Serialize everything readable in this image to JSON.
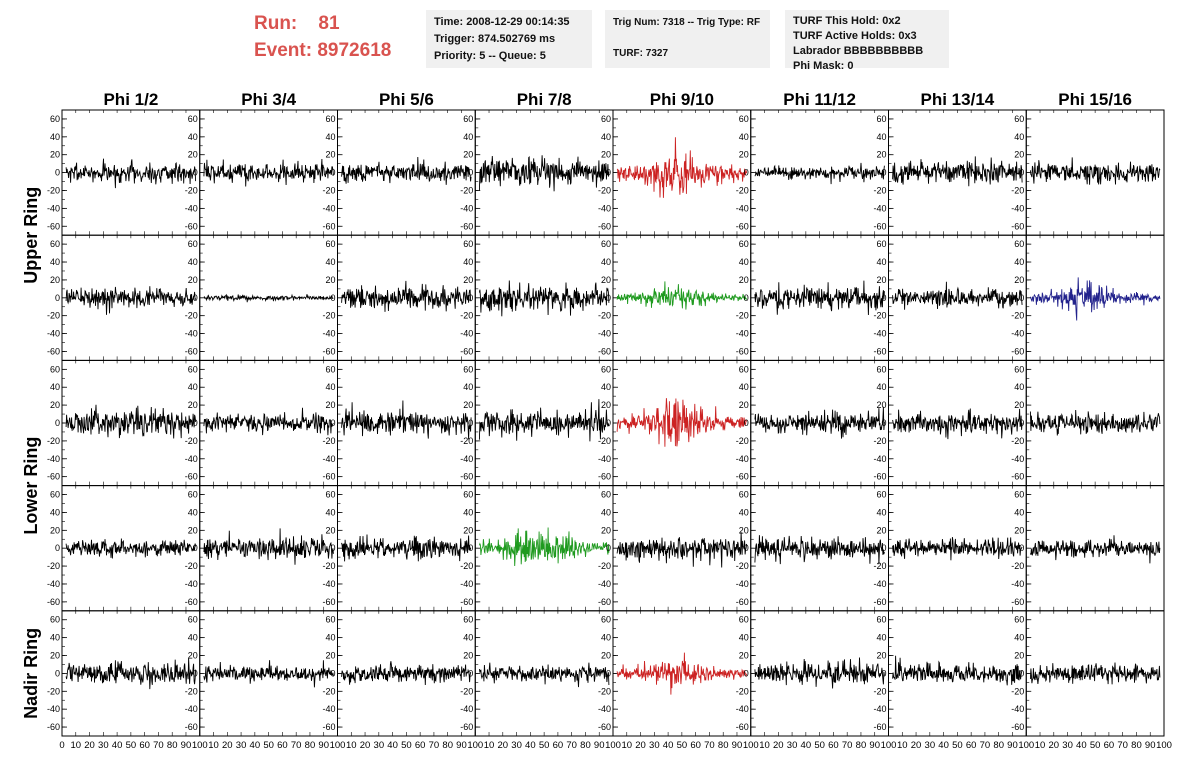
{
  "header": {
    "run_label": "Run:",
    "run_value": "81",
    "event_label": "Event:",
    "event_value": "8972618"
  },
  "info_boxes": {
    "time": "Time: 2008-12-29 00:14:35",
    "trigger": "Trigger: 874.502769 ms",
    "priority": "Priority: 5 -- Queue: 5",
    "trig": "Trig Num: 7318 -- Trig Type: RF",
    "turf": "TURF: 7327",
    "turf_this_hold": "TURF This Hold: 0x2",
    "turf_active_holds": "TURF Active Holds: 0x3",
    "labrador": "Labrador BBBBBBBBBB",
    "phi_mask": "Phi Mask: 0"
  },
  "chart_data": {
    "type": "line",
    "columns": [
      "Phi 1/2",
      "Phi 3/4",
      "Phi 5/6",
      "Phi 7/8",
      "Phi 9/10",
      "Phi 11/12",
      "Phi 13/14",
      "Phi 15/16"
    ],
    "row_labels": [
      {
        "text": "Upper Ring",
        "panel_rows": [
          0,
          1
        ]
      },
      {
        "text": "Lower Ring",
        "panel_rows": [
          2,
          3
        ]
      },
      {
        "text": "Nadir Ring",
        "panel_rows": [
          4,
          4
        ]
      }
    ],
    "xlim": [
      0,
      100
    ],
    "ylim": [
      -70,
      70
    ],
    "y_ticks": [
      -60,
      -40,
      -20,
      0,
      20,
      40,
      60
    ],
    "x_tick_labels": [
      "0",
      "10",
      "20",
      "30",
      "40",
      "50",
      "60",
      "70",
      "80",
      "90",
      "100"
    ],
    "colors": {
      "default": "#000000",
      "red": "#cc2222",
      "green": "#1f9a1f",
      "blue": "#22228c"
    },
    "panels": [
      {
        "row": 0,
        "col": 0,
        "color": "default",
        "amplitude": 13
      },
      {
        "row": 0,
        "col": 1,
        "color": "default",
        "amplitude": 12
      },
      {
        "row": 0,
        "col": 2,
        "color": "default",
        "amplitude": 12
      },
      {
        "row": 0,
        "col": 3,
        "color": "default",
        "amplitude": 17
      },
      {
        "row": 0,
        "col": 4,
        "color": "red",
        "amplitude": 25
      },
      {
        "row": 0,
        "col": 5,
        "color": "default",
        "amplitude": 8
      },
      {
        "row": 0,
        "col": 6,
        "color": "default",
        "amplitude": 14
      },
      {
        "row": 0,
        "col": 7,
        "color": "default",
        "amplitude": 13
      },
      {
        "row": 1,
        "col": 0,
        "color": "default",
        "amplitude": 12
      },
      {
        "row": 1,
        "col": 1,
        "color": "default",
        "amplitude": 3
      },
      {
        "row": 1,
        "col": 2,
        "color": "default",
        "amplitude": 15
      },
      {
        "row": 1,
        "col": 3,
        "color": "default",
        "amplitude": 16
      },
      {
        "row": 1,
        "col": 4,
        "color": "green",
        "amplitude": 13
      },
      {
        "row": 1,
        "col": 5,
        "color": "default",
        "amplitude": 14
      },
      {
        "row": 1,
        "col": 6,
        "color": "default",
        "amplitude": 12
      },
      {
        "row": 1,
        "col": 7,
        "color": "blue",
        "amplitude": 15
      },
      {
        "row": 2,
        "col": 0,
        "color": "default",
        "amplitude": 16
      },
      {
        "row": 2,
        "col": 1,
        "color": "default",
        "amplitude": 11
      },
      {
        "row": 2,
        "col": 2,
        "color": "default",
        "amplitude": 15
      },
      {
        "row": 2,
        "col": 3,
        "color": "default",
        "amplitude": 16
      },
      {
        "row": 2,
        "col": 4,
        "color": "red",
        "amplitude": 22
      },
      {
        "row": 2,
        "col": 5,
        "color": "default",
        "amplitude": 13
      },
      {
        "row": 2,
        "col": 6,
        "color": "default",
        "amplitude": 13
      },
      {
        "row": 2,
        "col": 7,
        "color": "default",
        "amplitude": 13
      },
      {
        "row": 3,
        "col": 0,
        "color": "default",
        "amplitude": 10
      },
      {
        "row": 3,
        "col": 1,
        "color": "default",
        "amplitude": 14
      },
      {
        "row": 3,
        "col": 2,
        "color": "default",
        "amplitude": 14
      },
      {
        "row": 3,
        "col": 3,
        "color": "green",
        "amplitude": 22
      },
      {
        "row": 3,
        "col": 4,
        "color": "default",
        "amplitude": 14
      },
      {
        "row": 3,
        "col": 5,
        "color": "default",
        "amplitude": 13
      },
      {
        "row": 3,
        "col": 6,
        "color": "default",
        "amplitude": 10
      },
      {
        "row": 3,
        "col": 7,
        "color": "default",
        "amplitude": 11
      },
      {
        "row": 4,
        "col": 0,
        "color": "default",
        "amplitude": 13
      },
      {
        "row": 4,
        "col": 1,
        "color": "default",
        "amplitude": 10
      },
      {
        "row": 4,
        "col": 2,
        "color": "default",
        "amplitude": 12
      },
      {
        "row": 4,
        "col": 3,
        "color": "default",
        "amplitude": 12
      },
      {
        "row": 4,
        "col": 4,
        "color": "red",
        "amplitude": 17
      },
      {
        "row": 4,
        "col": 5,
        "color": "default",
        "amplitude": 14
      },
      {
        "row": 4,
        "col": 6,
        "color": "default",
        "amplitude": 12
      },
      {
        "row": 4,
        "col": 7,
        "color": "default",
        "amplitude": 12
      }
    ]
  }
}
